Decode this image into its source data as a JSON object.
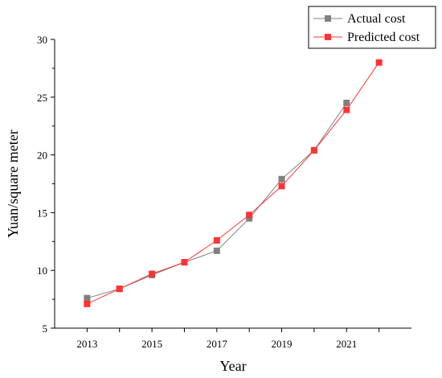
{
  "chart_data": {
    "type": "line",
    "xlabel": "Year",
    "ylabel": "Yuan/square meter",
    "xlim": [
      2012,
      2023
    ],
    "ylim": [
      5,
      30
    ],
    "x_ticks": [
      2013,
      2015,
      2017,
      2019,
      2021
    ],
    "y_ticks": [
      5,
      10,
      15,
      20,
      25,
      30
    ],
    "grid": false,
    "legend_position": "top-right",
    "series": [
      {
        "name": "Actual cost",
        "color": "#808080",
        "marker": "square",
        "x": [
          2013,
          2014,
          2015,
          2016,
          2017,
          2018,
          2019,
          2020,
          2021
        ],
        "y": [
          7.6,
          8.4,
          9.6,
          10.7,
          11.7,
          14.5,
          17.9,
          20.4,
          24.5
        ]
      },
      {
        "name": "Predicted cost",
        "color": "#ff3333",
        "marker": "square",
        "x": [
          2013,
          2014,
          2015,
          2016,
          2017,
          2018,
          2019,
          2020,
          2021,
          2022
        ],
        "y": [
          7.1,
          8.4,
          9.7,
          10.7,
          12.6,
          14.8,
          17.3,
          20.4,
          23.9,
          28.0
        ]
      }
    ]
  }
}
